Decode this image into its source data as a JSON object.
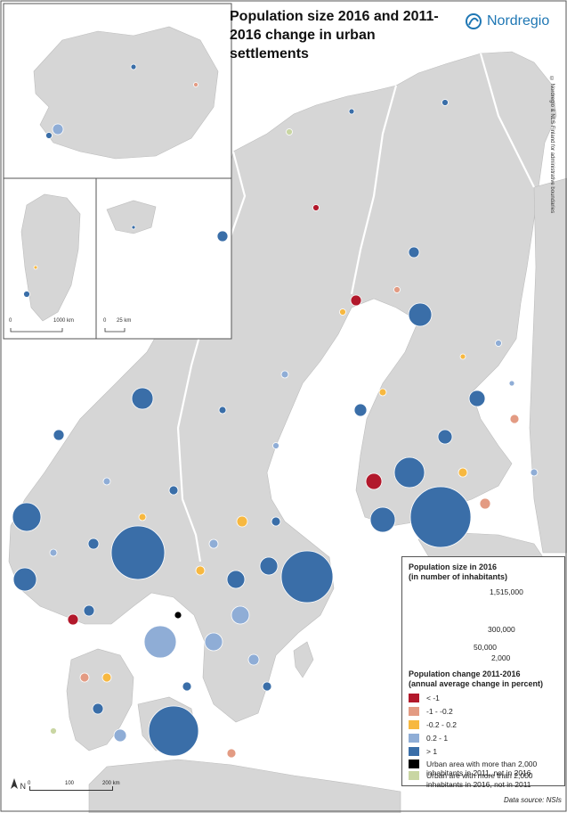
{
  "title": "Population size 2016 and 2011-2016 change in urban settlements",
  "brand": "Nordregio",
  "copyright": "© Nordregio & NLS Finland for administrative boundaries",
  "source": "Data source: NSIs",
  "legend": {
    "size_title_1": "Population size in 2016",
    "size_title_2": "(in number of inhabitants)",
    "size_values": [
      "1,515,000",
      "300,000",
      "50,000",
      "2,000"
    ],
    "change_title_1": "Population change 2011-2016",
    "change_title_2": "(annual average change in percent)",
    "classes": [
      {
        "label": "< -1",
        "color": "#b2182b"
      },
      {
        "label": "-1 - -0.2",
        "color": "#e39b83"
      },
      {
        "label": "-0.2 - 0.2",
        "color": "#f7b840"
      },
      {
        "label": "0.2 - 1",
        "color": "#8fadd6"
      },
      {
        "label": "> 1",
        "color": "#3a6ea8"
      },
      {
        "label": "Urban area with more than 2,000 inhabitants in 2011, not in 2016",
        "color": "#000000"
      },
      {
        "label": "Urban are with more than 2,000 inhabitants in 2016, not in 2011",
        "color": "#c9d6a3"
      }
    ]
  },
  "scale": {
    "main": [
      "0",
      "100",
      "200 km"
    ],
    "greenland": [
      "0",
      "1000 km"
    ],
    "svalbard": [
      "0",
      "25 km"
    ]
  },
  "north": "N",
  "colors": {
    "land": "#d6d6d6",
    "sea": "#ffffff",
    "border": "#ffffff",
    "frame": "#555555"
  }
}
